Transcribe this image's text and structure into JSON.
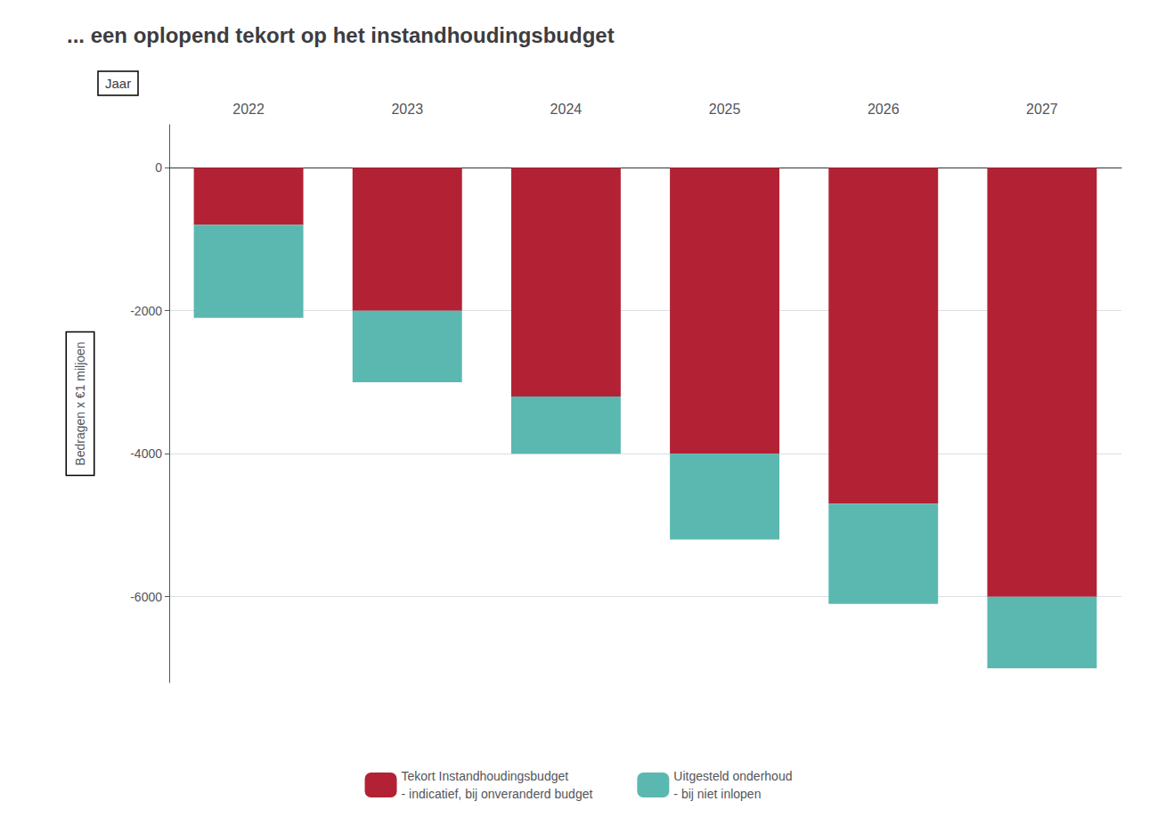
{
  "chart_data": {
    "type": "bar",
    "title": "... een oplopend tekort op het instandhoudingsbudget",
    "xlabel": "Jaar",
    "ylabel": "Bedragen x €1 miljoen",
    "categories": [
      "2022",
      "2023",
      "2024",
      "2025",
      "2026",
      "2027"
    ],
    "series": [
      {
        "name": "Tekort Instandhoudingsbudget\n- indicatief, bij onveranderd budget",
        "color": "#b22234",
        "values": [
          -800,
          -2000,
          -3200,
          -4000,
          -4700,
          -6000
        ]
      },
      {
        "name": "Uitgesteld onderhoud\n- bij niet inlopen",
        "color": "#5bb8b0",
        "values": [
          -1300,
          -1000,
          -800,
          -1200,
          -1400,
          -1000
        ]
      }
    ],
    "stacked": true,
    "ylim": [
      -7200,
      600
    ],
    "yticks": [
      0,
      -2000,
      -4000,
      -6000
    ],
    "grid": true,
    "legend": "bottom"
  }
}
